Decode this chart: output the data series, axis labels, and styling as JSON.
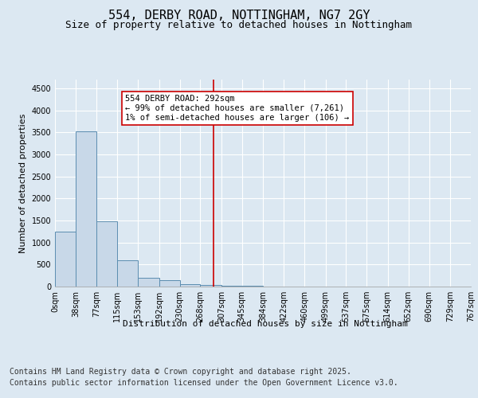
{
  "title_line1": "554, DERBY ROAD, NOTTINGHAM, NG7 2GY",
  "title_line2": "Size of property relative to detached houses in Nottingham",
  "xlabel": "Distribution of detached houses by size in Nottingham",
  "ylabel": "Number of detached properties",
  "bins": [
    0,
    38,
    77,
    115,
    153,
    192,
    230,
    268,
    307,
    345,
    384,
    422,
    460,
    499,
    537,
    575,
    614,
    652,
    690,
    729,
    767
  ],
  "bin_labels": [
    "0sqm",
    "38sqm",
    "77sqm",
    "115sqm",
    "153sqm",
    "192sqm",
    "230sqm",
    "268sqm",
    "307sqm",
    "345sqm",
    "384sqm",
    "422sqm",
    "460sqm",
    "499sqm",
    "537sqm",
    "575sqm",
    "614sqm",
    "652sqm",
    "690sqm",
    "729sqm",
    "767sqm"
  ],
  "values": [
    1250,
    3520,
    1480,
    600,
    200,
    140,
    60,
    45,
    25,
    10,
    5,
    5,
    3,
    0,
    0,
    0,
    0,
    0,
    0,
    0
  ],
  "bar_color": "#c8d8e8",
  "bar_edge_color": "#5b8db0",
  "property_line_x": 292,
  "property_line_color": "#cc0000",
  "annotation_text": "554 DERBY ROAD: 292sqm\n← 99% of detached houses are smaller (7,261)\n1% of semi-detached houses are larger (106) →",
  "annotation_box_color": "#cc0000",
  "ylim": [
    0,
    4700
  ],
  "yticks": [
    0,
    500,
    1000,
    1500,
    2000,
    2500,
    3000,
    3500,
    4000,
    4500
  ],
  "background_color": "#dce8f2",
  "plot_bg_color": "#dce8f2",
  "grid_color": "#ffffff",
  "footer_line1": "Contains HM Land Registry data © Crown copyright and database right 2025.",
  "footer_line2": "Contains public sector information licensed under the Open Government Licence v3.0.",
  "footer_fontsize": 7,
  "title_fontsize1": 11,
  "title_fontsize2": 9,
  "ylabel_fontsize": 8,
  "xlabel_fontsize": 8,
  "tick_fontsize": 7,
  "annot_fontsize": 7.5
}
